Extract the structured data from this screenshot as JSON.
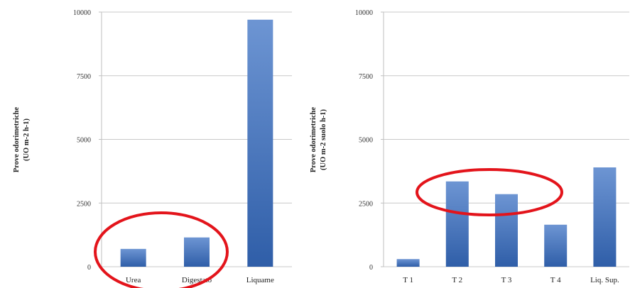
{
  "accent": {
    "bar_top": "#6d95d3",
    "bar_bottom": "#2f5ea8",
    "highlight_ellipse": "#e3141b"
  },
  "chart_data": [
    {
      "type": "bar",
      "categories": [
        "Urea",
        "Digestato",
        "Liquame"
      ],
      "values": [
        700,
        1150,
        9700
      ],
      "ylabel_line1": "Prove odorimetriche",
      "ylabel_line2": "(UO m-2 h-1)",
      "ylim": [
        0,
        10000
      ],
      "yticks": [
        0,
        2500,
        5000,
        7500,
        10000
      ],
      "grid": true,
      "highlighted_categories": [
        "Urea",
        "Digestato"
      ]
    },
    {
      "type": "bar",
      "categories": [
        "T 1",
        "T 2",
        "T 3",
        "T 4",
        "Liq. Sup."
      ],
      "values": [
        300,
        3350,
        2850,
        1650,
        3900
      ],
      "ylabel_line1": "Prove odorimetriche",
      "ylabel_line2": "(UO m-2 suolo h-1)",
      "ylim": [
        0,
        10000
      ],
      "yticks": [
        0,
        2500,
        5000,
        7500,
        10000
      ],
      "grid": true,
      "highlighted_categories": [
        "T 2",
        "T 3"
      ]
    }
  ]
}
